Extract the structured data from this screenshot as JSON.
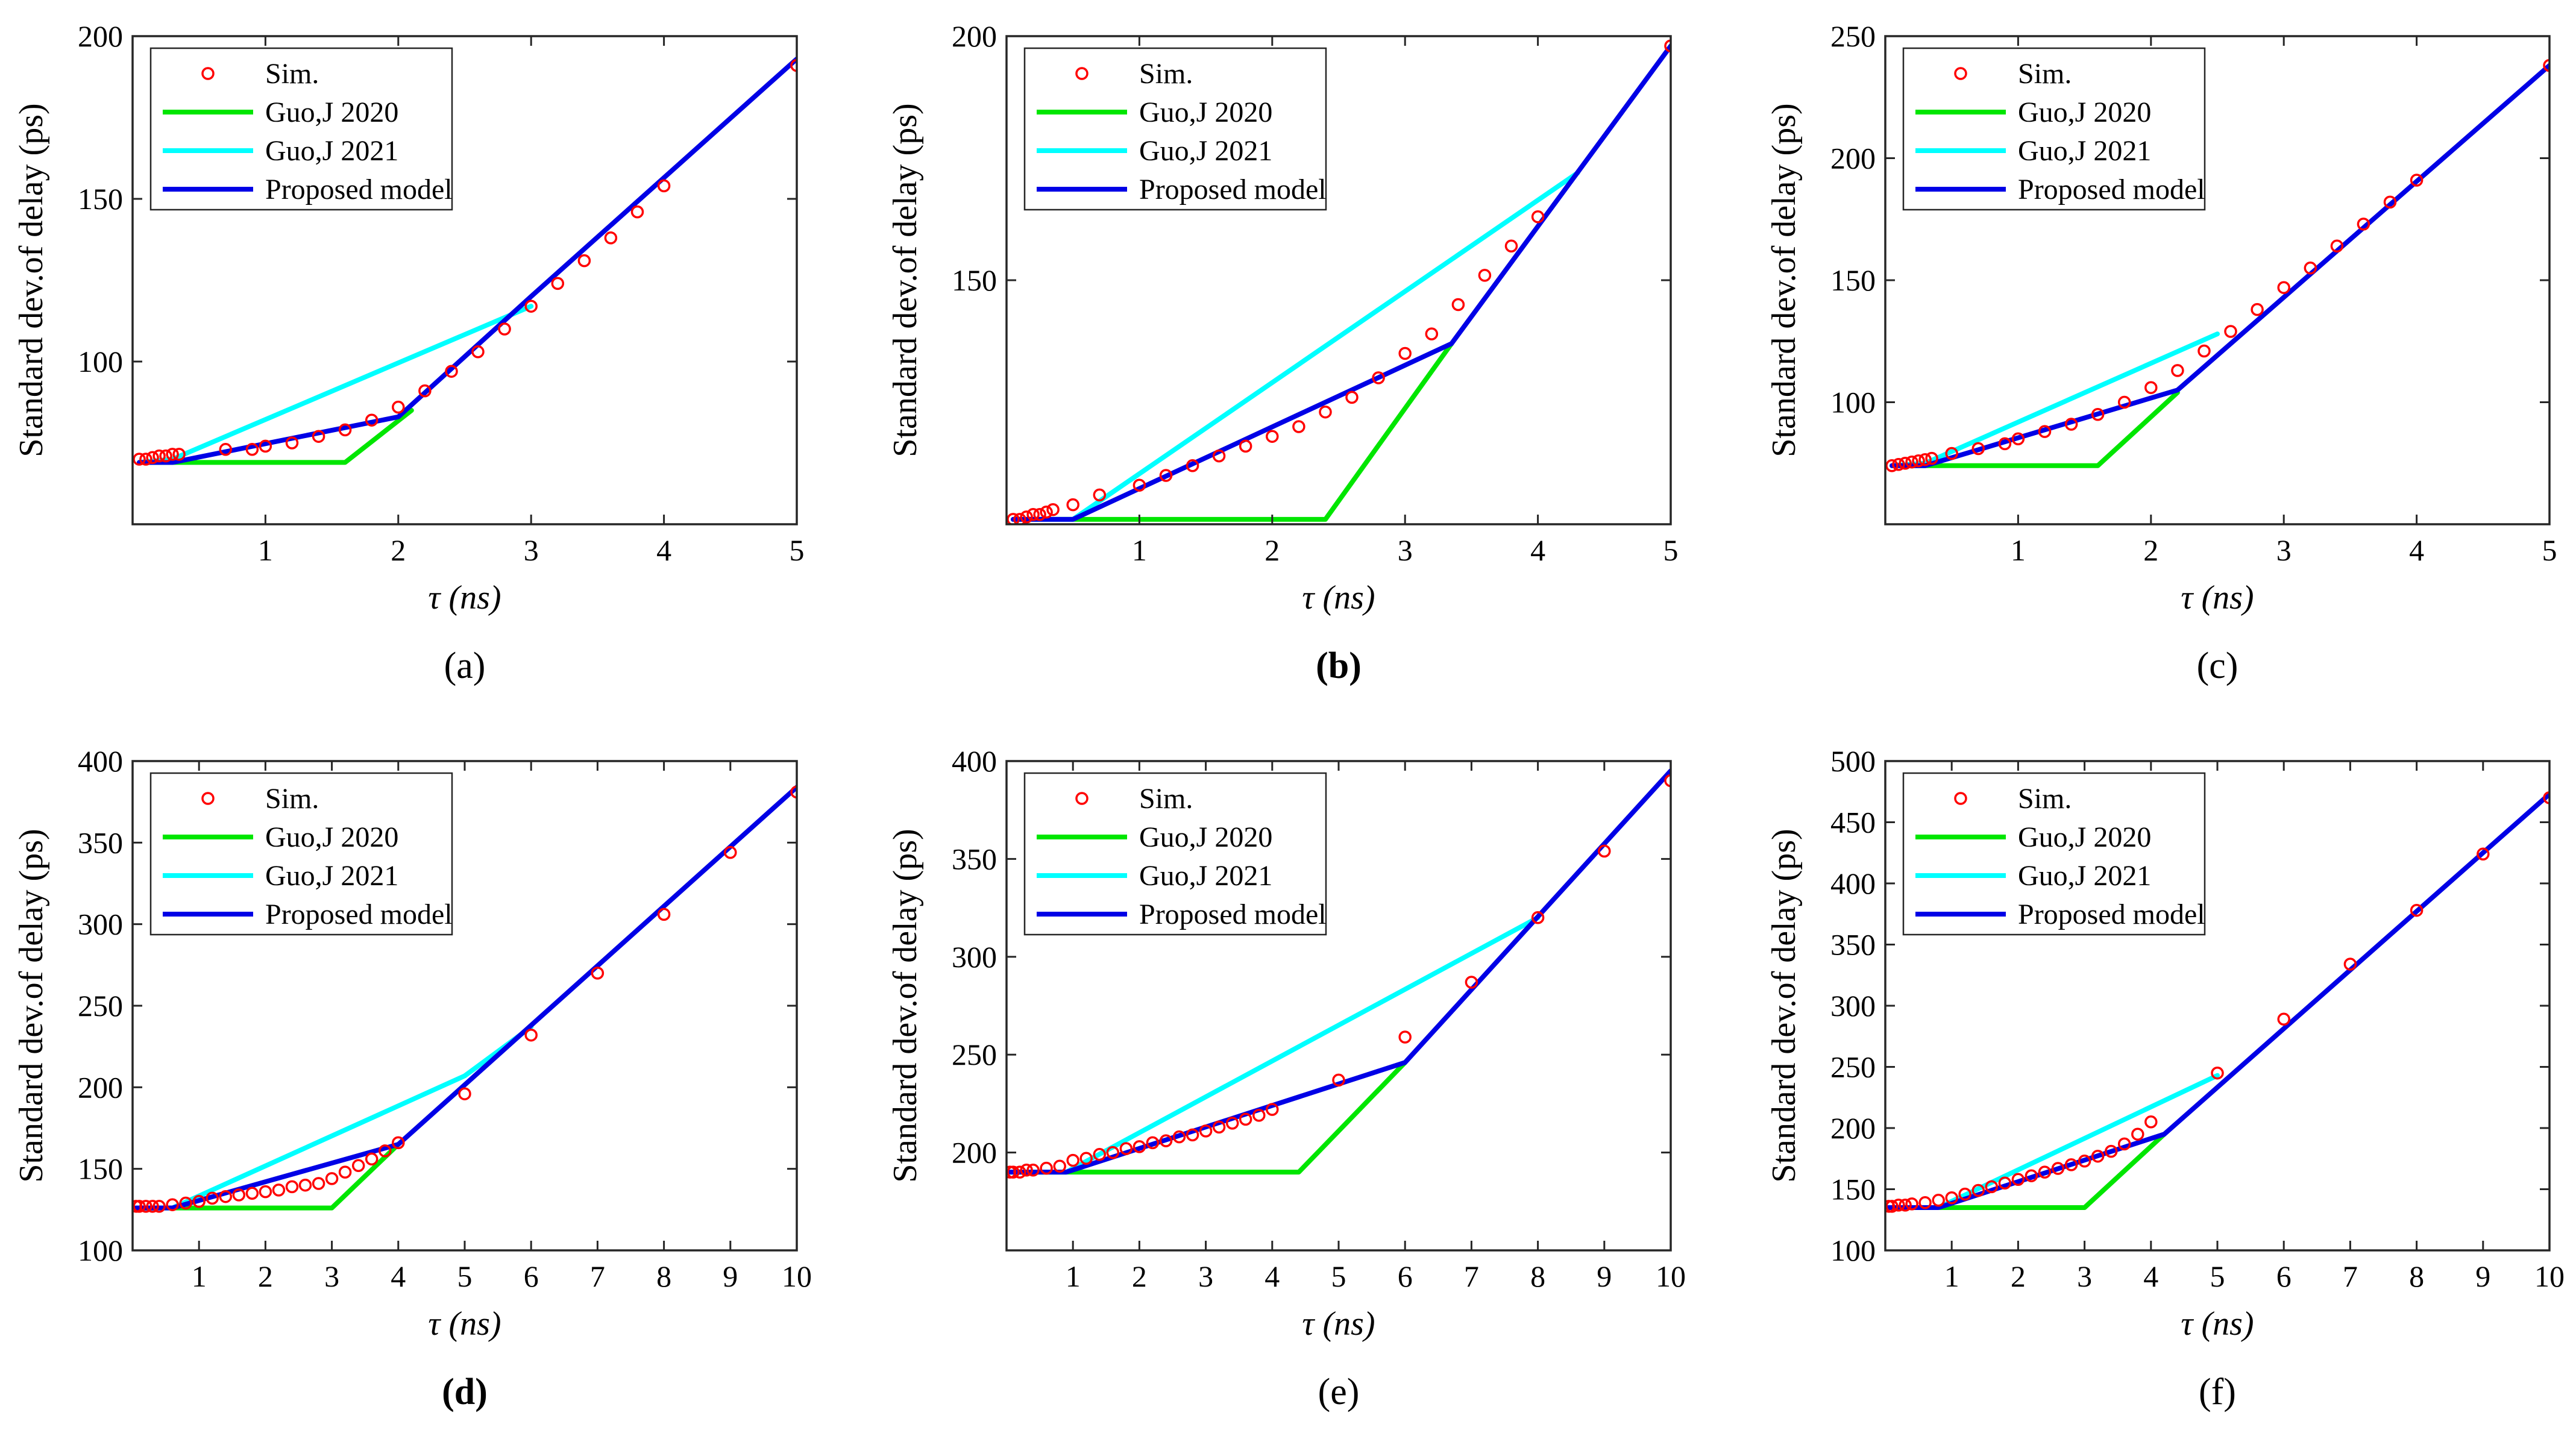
{
  "chart_data": [
    {
      "id": "a",
      "caption": "(a)",
      "caption_bold": false,
      "type": "line",
      "xlabel": "τ (ns)",
      "ylabel": "Standard dev.of delay (ps)",
      "xlim": [
        0,
        5
      ],
      "ylim": [
        50,
        200
      ],
      "xticks": [
        1,
        2,
        3,
        4,
        5
      ],
      "yticks": [
        100,
        150,
        200
      ],
      "legend": {
        "location": "top-left",
        "entries": [
          "Sim.",
          "Guo,J 2020",
          "Guo,J 2021",
          "Proposed model"
        ]
      },
      "series": [
        {
          "name": "Sim.",
          "kind": "markers",
          "color": "#ff0000",
          "x": [
            0.05,
            0.1,
            0.15,
            0.2,
            0.25,
            0.3,
            0.35,
            0.7,
            0.9,
            1.0,
            1.2,
            1.4,
            1.6,
            1.8,
            2.0,
            2.2,
            2.4,
            2.6,
            2.8,
            3.0,
            3.2,
            3.4,
            3.6,
            3.8,
            4.0,
            5.0
          ],
          "y": [
            70,
            70,
            70.5,
            71,
            71,
            71.5,
            71.5,
            73,
            73,
            74,
            75,
            77,
            79,
            82,
            86,
            91,
            97,
            103,
            110,
            117,
            124,
            131,
            138,
            146,
            154,
            191
          ]
        },
        {
          "name": "Guo,J 2020",
          "kind": "line",
          "color": "#00e600",
          "x": [
            0.05,
            1.6,
            2.1
          ],
          "y": [
            69,
            69,
            85
          ]
        },
        {
          "name": "Guo,J 2021",
          "kind": "line",
          "color": "#00ffff",
          "x": [
            0.05,
            0.3,
            3.0
          ],
          "y": [
            69,
            70,
            117
          ]
        },
        {
          "name": "Proposed model",
          "kind": "line",
          "color": "#0000e6",
          "x": [
            0.05,
            0.3,
            2.0,
            3.0,
            5.0
          ],
          "y": [
            69,
            69,
            83,
            120,
            193
          ]
        }
      ]
    },
    {
      "id": "b",
      "caption": "(b)",
      "caption_bold": true,
      "type": "line",
      "xlabel": "τ (ns)",
      "ylabel": "Standard dev.of delay (ps)",
      "xlim": [
        0,
        5
      ],
      "ylim": [
        100,
        200
      ],
      "xticks": [
        1,
        2,
        3,
        4,
        5
      ],
      "yticks": [
        150,
        200
      ],
      "legend": {
        "location": "top-left",
        "entries": [
          "Sim.",
          "Guo,J 2020",
          "Guo,J 2021",
          "Proposed model"
        ]
      },
      "series": [
        {
          "name": "Sim.",
          "kind": "markers",
          "color": "#ff0000",
          "x": [
            0.05,
            0.1,
            0.15,
            0.2,
            0.25,
            0.3,
            0.35,
            0.5,
            0.7,
            1.0,
            1.2,
            1.4,
            1.6,
            1.8,
            2.0,
            2.2,
            2.4,
            2.6,
            2.8,
            3.0,
            3.2,
            3.4,
            3.6,
            3.8,
            4.0,
            5.0
          ],
          "y": [
            101,
            101,
            101.5,
            102,
            102,
            102.5,
            103,
            104,
            106,
            108,
            110,
            112,
            114,
            116,
            118,
            120,
            123,
            126,
            130,
            135,
            139,
            145,
            151,
            157,
            163,
            198
          ]
        },
        {
          "name": "Guo,J 2020",
          "kind": "line",
          "color": "#00e600",
          "x": [
            0.05,
            2.4,
            3.35
          ],
          "y": [
            101,
            101,
            137
          ]
        },
        {
          "name": "Guo,J 2021",
          "kind": "line",
          "color": "#00ffff",
          "x": [
            0.05,
            0.5,
            4.3
          ],
          "y": [
            101,
            101,
            172
          ]
        },
        {
          "name": "Proposed model",
          "kind": "line",
          "color": "#0000e6",
          "x": [
            0.05,
            0.5,
            3.35,
            5.0
          ],
          "y": [
            101,
            101,
            137,
            198
          ]
        }
      ]
    },
    {
      "id": "c",
      "caption": "(c)",
      "caption_bold": false,
      "type": "line",
      "xlabel": "τ (ns)",
      "ylabel": "Standard dev.of delay (ps)",
      "xlim": [
        0,
        5
      ],
      "ylim": [
        50,
        250
      ],
      "xticks": [
        1,
        2,
        3,
        4,
        5
      ],
      "yticks": [
        100,
        150,
        200,
        250
      ],
      "legend": {
        "location": "top-left",
        "entries": [
          "Sim.",
          "Guo,J 2020",
          "Guo,J 2021",
          "Proposed model"
        ]
      },
      "series": [
        {
          "name": "Sim.",
          "kind": "markers",
          "color": "#ff0000",
          "x": [
            0.05,
            0.1,
            0.15,
            0.2,
            0.25,
            0.3,
            0.35,
            0.5,
            0.7,
            0.9,
            1.0,
            1.2,
            1.4,
            1.6,
            1.8,
            2.0,
            2.2,
            2.4,
            2.6,
            2.8,
            3.0,
            3.2,
            3.4,
            3.6,
            3.8,
            4.0,
            5.0
          ],
          "y": [
            74,
            74.5,
            75,
            75.5,
            76,
            76.5,
            77,
            79,
            81,
            83,
            85,
            88,
            91,
            95,
            100,
            106,
            113,
            121,
            129,
            138,
            147,
            155,
            164,
            173,
            182,
            191,
            238
          ]
        },
        {
          "name": "Guo,J 2020",
          "kind": "line",
          "color": "#00e600",
          "x": [
            0.05,
            1.6,
            2.2
          ],
          "y": [
            74,
            74,
            104
          ]
        },
        {
          "name": "Guo,J 2021",
          "kind": "line",
          "color": "#00ffff",
          "x": [
            0.05,
            0.3,
            2.5
          ],
          "y": [
            74,
            75,
            128
          ]
        },
        {
          "name": "Proposed model",
          "kind": "line",
          "color": "#0000e6",
          "x": [
            0.05,
            0.3,
            2.2,
            5.0
          ],
          "y": [
            74,
            74,
            105,
            238
          ]
        }
      ]
    },
    {
      "id": "d",
      "caption": "(d)",
      "caption_bold": true,
      "type": "line",
      "xlabel": "τ (ns)",
      "ylabel": "Standard dev.of delay (ps)",
      "xlim": [
        0,
        10
      ],
      "ylim": [
        100,
        400
      ],
      "xticks": [
        1,
        2,
        3,
        4,
        5,
        6,
        7,
        8,
        9,
        10
      ],
      "yticks": [
        100,
        150,
        200,
        250,
        300,
        350,
        400
      ],
      "legend": {
        "location": "top-left",
        "entries": [
          "Sim.",
          "Guo,J 2020",
          "Guo,J 2021",
          "Proposed model"
        ]
      },
      "series": [
        {
          "name": "Sim.",
          "kind": "markers",
          "color": "#ff0000",
          "x": [
            0.05,
            0.1,
            0.2,
            0.3,
            0.4,
            0.6,
            0.8,
            1.0,
            1.2,
            1.4,
            1.6,
            1.8,
            2.0,
            2.2,
            2.4,
            2.6,
            2.8,
            3.0,
            3.2,
            3.4,
            3.6,
            3.8,
            4.0,
            5.0,
            6.0,
            7.0,
            8.0,
            9.0,
            10.0
          ],
          "y": [
            127,
            127,
            127,
            127,
            127,
            128,
            129,
            130,
            132,
            133,
            134,
            135,
            136,
            137,
            139,
            140,
            141,
            144,
            148,
            152,
            156,
            161,
            166,
            196,
            232,
            270,
            306,
            344,
            381
          ]
        },
        {
          "name": "Guo,J 2020",
          "kind": "line",
          "color": "#00e600",
          "x": [
            0.05,
            3.0,
            4.0
          ],
          "y": [
            126,
            126,
            165
          ]
        },
        {
          "name": "Guo,J 2021",
          "kind": "line",
          "color": "#00ffff",
          "x": [
            0.05,
            0.6,
            5.0,
            6.0
          ],
          "y": [
            126,
            126,
            207,
            237
          ]
        },
        {
          "name": "Proposed model",
          "kind": "line",
          "color": "#0000e6",
          "x": [
            0.05,
            0.6,
            4.0,
            10.0
          ],
          "y": [
            126,
            126,
            165,
            384
          ]
        }
      ]
    },
    {
      "id": "e",
      "caption": "(e)",
      "caption_bold": false,
      "type": "line",
      "xlabel": "τ (ns)",
      "ylabel": "Standard dev.of delay (ps)",
      "xlim": [
        0,
        10
      ],
      "ylim": [
        150,
        400
      ],
      "xticks": [
        1,
        2,
        3,
        4,
        5,
        6,
        7,
        8,
        9,
        10
      ],
      "yticks": [
        200,
        250,
        300,
        350,
        400
      ],
      "legend": {
        "location": "top-left",
        "entries": [
          "Sim.",
          "Guo,J 2020",
          "Guo,J 2021",
          "Proposed model"
        ]
      },
      "series": [
        {
          "name": "Sim.",
          "kind": "markers",
          "color": "#ff0000",
          "x": [
            0.05,
            0.1,
            0.2,
            0.3,
            0.4,
            0.6,
            0.8,
            1.0,
            1.2,
            1.4,
            1.6,
            1.8,
            2.0,
            2.2,
            2.4,
            2.6,
            2.8,
            3.0,
            3.2,
            3.4,
            3.6,
            3.8,
            4.0,
            5.0,
            6.0,
            7.0,
            8.0,
            9.0,
            10.0
          ],
          "y": [
            190,
            190,
            190,
            191,
            191,
            192,
            193,
            196,
            197,
            199,
            200,
            202,
            203,
            205,
            206,
            208,
            209,
            211,
            213,
            215,
            217,
            219,
            222,
            237,
            259,
            287,
            320,
            354,
            390
          ]
        },
        {
          "name": "Guo,J 2020",
          "kind": "line",
          "color": "#00e600",
          "x": [
            0.05,
            4.4,
            6.0
          ],
          "y": [
            190,
            190,
            246
          ]
        },
        {
          "name": "Guo,J 2021",
          "kind": "line",
          "color": "#00ffff",
          "x": [
            0.05,
            0.9,
            8.0
          ],
          "y": [
            190,
            190,
            320
          ]
        },
        {
          "name": "Proposed model",
          "kind": "line",
          "color": "#0000e6",
          "x": [
            0.05,
            0.9,
            6.0,
            10.0
          ],
          "y": [
            190,
            190,
            246,
            395
          ]
        }
      ]
    },
    {
      "id": "f",
      "caption": "(f)",
      "caption_bold": false,
      "type": "line",
      "xlabel": "τ (ns)",
      "ylabel": "Standard dev.of delay (ps)",
      "xlim": [
        0,
        10
      ],
      "ylim": [
        100,
        500
      ],
      "xticks": [
        1,
        2,
        3,
        4,
        5,
        6,
        7,
        8,
        9,
        10
      ],
      "yticks": [
        100,
        150,
        200,
        250,
        300,
        350,
        400,
        450,
        500
      ],
      "legend": {
        "location": "top-left",
        "entries": [
          "Sim.",
          "Guo,J 2020",
          "Guo,J 2021",
          "Proposed model"
        ]
      },
      "series": [
        {
          "name": "Sim.",
          "kind": "markers",
          "color": "#ff0000",
          "x": [
            0.05,
            0.1,
            0.2,
            0.3,
            0.4,
            0.6,
            0.8,
            1.0,
            1.2,
            1.4,
            1.6,
            1.8,
            2.0,
            2.2,
            2.4,
            2.6,
            2.8,
            3.0,
            3.2,
            3.4,
            3.6,
            3.8,
            4.0,
            5.0,
            6.0,
            7.0,
            8.0,
            9.0,
            10.0
          ],
          "y": [
            136,
            136,
            137,
            137,
            138,
            139,
            141,
            143,
            146,
            149,
            152,
            155,
            158,
            161,
            164,
            167,
            170,
            173,
            177,
            181,
            187,
            195,
            205,
            245,
            289,
            334,
            378,
            424,
            470
          ]
        },
        {
          "name": "Guo,J 2020",
          "kind": "line",
          "color": "#00e600",
          "x": [
            0.05,
            3.0,
            4.2
          ],
          "y": [
            135,
            135,
            195
          ]
        },
        {
          "name": "Guo,J 2021",
          "kind": "line",
          "color": "#00ffff",
          "x": [
            0.05,
            0.8,
            5.0
          ],
          "y": [
            135,
            135,
            243
          ]
        },
        {
          "name": "Proposed model",
          "kind": "line",
          "color": "#0000e6",
          "x": [
            0.05,
            0.8,
            4.2,
            10.0
          ],
          "y": [
            135,
            135,
            195,
            473
          ]
        }
      ]
    }
  ]
}
